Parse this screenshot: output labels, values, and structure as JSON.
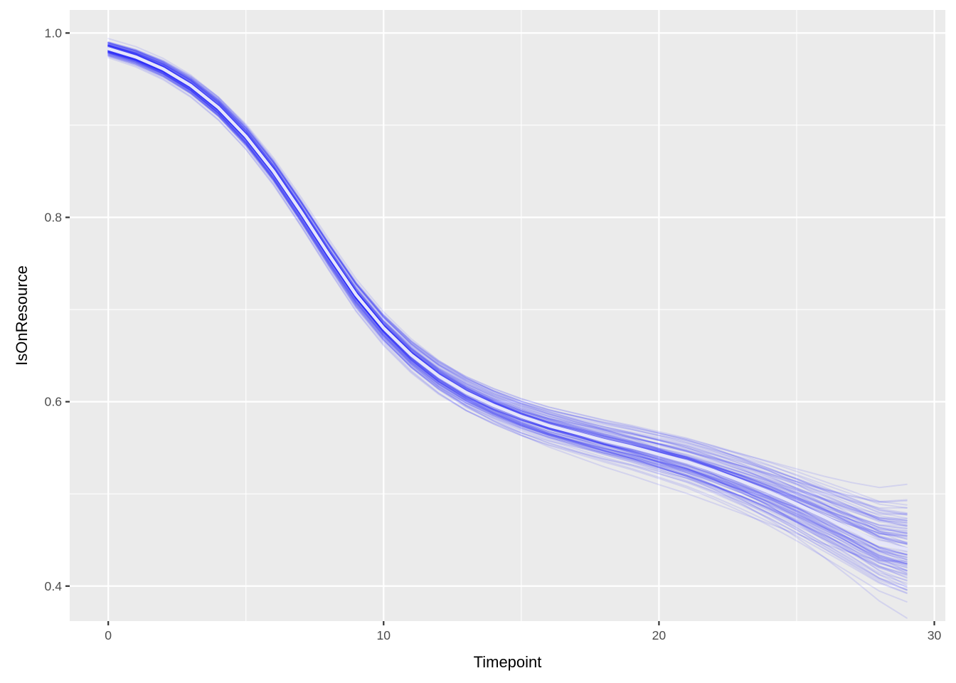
{
  "chart_data": {
    "type": "line",
    "title": "",
    "xlabel": "Timepoint",
    "ylabel": "IsOnResource",
    "xlim": [
      -1.4,
      30.4
    ],
    "ylim": [
      0.362,
      1.025
    ],
    "x_ticks": [
      0,
      10,
      20,
      30
    ],
    "x_tick_labels": [
      "0",
      "10",
      "20",
      "30"
    ],
    "y_ticks": [
      0.4,
      0.6,
      0.8,
      1.0
    ],
    "y_tick_labels": [
      "0.4",
      "0.6",
      "0.8",
      "1.0"
    ],
    "x_minor_ticks": [
      5,
      15,
      25
    ],
    "y_minor_ticks": [
      0.5,
      0.7,
      0.9
    ],
    "grid": true,
    "legend": "none",
    "background_color": "#EBEBEB",
    "draws_color": "#0000FF",
    "draws_opacity": 0.1,
    "mean_color": "#E6E6FA",
    "draws_count": 100,
    "series": [
      {
        "role": "mean",
        "x": [
          0,
          1,
          2,
          3,
          4,
          5,
          6,
          7,
          8,
          9,
          10,
          11,
          12,
          13,
          14,
          15,
          16,
          17,
          18,
          19,
          20,
          21,
          22,
          23,
          24,
          25,
          26,
          27,
          28,
          29
        ],
        "y": [
          0.983,
          0.974,
          0.961,
          0.943,
          0.919,
          0.888,
          0.85,
          0.806,
          0.76,
          0.716,
          0.68,
          0.651,
          0.628,
          0.61,
          0.596,
          0.584,
          0.574,
          0.566,
          0.558,
          0.551,
          0.543,
          0.535,
          0.525,
          0.514,
          0.502,
          0.489,
          0.475,
          0.461,
          0.447,
          0.44
        ]
      }
    ]
  }
}
